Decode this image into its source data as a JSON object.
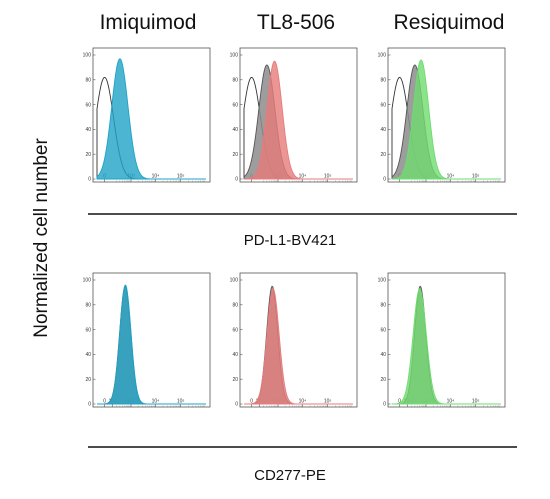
{
  "columns": [
    "Imiquimod",
    "TL8-506",
    "Resiquimod"
  ],
  "y_axis_title": "Normalized cell number",
  "colors": {
    "Imiquimod": "#1fa3c6",
    "TL8-506": "#e77b7b",
    "Resiquimod": "#6fdc6f",
    "reference": "#8c8c8c",
    "isotype": "#333333"
  },
  "chart_data": [
    {
      "type": "area",
      "row": 0,
      "column": 0,
      "marker": "PD-L1-BV421",
      "xscale": "biexponential",
      "xlim": [
        -100,
        1000000
      ],
      "ylim": [
        0,
        100
      ],
      "yticks": [
        "0",
        "20",
        "40",
        "60",
        "80",
        "100"
      ],
      "xticks": [
        "0",
        "10³",
        "10⁴",
        "10⁵"
      ],
      "series": [
        {
          "role": "isotype",
          "peak_x": 0,
          "width_decades": 0.35,
          "peak_y": 82,
          "fill": false
        },
        {
          "role": "stimulated",
          "peak_x": 300,
          "width_decades": 0.32,
          "peak_y": 97,
          "fill": true
        }
      ]
    },
    {
      "type": "area",
      "row": 0,
      "column": 1,
      "marker": "PD-L1-BV421",
      "xscale": "biexponential",
      "xlim": [
        -100,
        1000000
      ],
      "ylim": [
        0,
        100
      ],
      "yticks": [
        "0",
        "20",
        "40",
        "60",
        "80",
        "100"
      ],
      "xticks": [
        "0",
        "10³",
        "10⁴",
        "10⁵"
      ],
      "series": [
        {
          "role": "isotype",
          "peak_x": 0,
          "width_decades": 0.35,
          "peak_y": 82,
          "fill": false
        },
        {
          "role": "reference",
          "peak_x": 300,
          "width_decades": 0.32,
          "peak_y": 92,
          "fill": true
        },
        {
          "role": "stimulated",
          "peak_x": 700,
          "width_decades": 0.3,
          "peak_y": 95,
          "fill": true
        }
      ]
    },
    {
      "type": "area",
      "row": 0,
      "column": 2,
      "marker": "PD-L1-BV421",
      "xscale": "biexponential",
      "xlim": [
        -100,
        1000000
      ],
      "ylim": [
        0,
        100
      ],
      "yticks": [
        "0",
        "20",
        "40",
        "60",
        "80",
        "100"
      ],
      "xticks": [
        "0",
        "10³",
        "10⁴",
        "10⁵"
      ],
      "series": [
        {
          "role": "isotype",
          "peak_x": 0,
          "width_decades": 0.35,
          "peak_y": 82,
          "fill": false
        },
        {
          "role": "reference",
          "peak_x": 300,
          "width_decades": 0.32,
          "peak_y": 92,
          "fill": true
        },
        {
          "role": "stimulated",
          "peak_x": 600,
          "width_decades": 0.3,
          "peak_y": 96,
          "fill": true
        }
      ]
    },
    {
      "type": "area",
      "row": 1,
      "column": 0,
      "marker": "CD277-PE",
      "xscale": "biexponential",
      "xlim": [
        -100,
        1000000
      ],
      "ylim": [
        0,
        100
      ],
      "yticks": [
        "0",
        "20",
        "40",
        "60",
        "80",
        "100"
      ],
      "xticks": [
        "0",
        "10²",
        "10³",
        "10⁴",
        "10⁵"
      ],
      "series": [
        {
          "role": "reference",
          "peak_x": 550,
          "width_decades": 0.22,
          "peak_y": 95,
          "fill": true
        },
        {
          "role": "stimulated",
          "peak_x": 560,
          "width_decades": 0.22,
          "peak_y": 96,
          "fill": true
        }
      ]
    },
    {
      "type": "area",
      "row": 1,
      "column": 1,
      "marker": "CD277-PE",
      "xscale": "biexponential",
      "xlim": [
        -100,
        1000000
      ],
      "ylim": [
        0,
        100
      ],
      "yticks": [
        "0",
        "20",
        "40",
        "60",
        "80",
        "100"
      ],
      "xticks": [
        "0",
        "10²",
        "10³",
        "10⁴",
        "10⁵"
      ],
      "series": [
        {
          "role": "reference",
          "peak_x": 550,
          "width_decades": 0.22,
          "peak_y": 95,
          "fill": true
        },
        {
          "role": "stimulated",
          "peak_x": 600,
          "width_decades": 0.24,
          "peak_y": 93,
          "fill": true
        }
      ]
    },
    {
      "type": "area",
      "row": 1,
      "column": 2,
      "marker": "CD277-PE",
      "xscale": "biexponential",
      "xlim": [
        -100,
        1000000
      ],
      "ylim": [
        0,
        100
      ],
      "yticks": [
        "0",
        "20",
        "40",
        "60",
        "80",
        "100"
      ],
      "xticks": [
        "0",
        "10²",
        "10³",
        "10⁴",
        "10⁵"
      ],
      "series": [
        {
          "role": "reference",
          "peak_x": 550,
          "width_decades": 0.22,
          "peak_y": 95,
          "fill": true
        },
        {
          "role": "stimulated",
          "peak_x": 520,
          "width_decades": 0.26,
          "peak_y": 93,
          "fill": true
        }
      ]
    }
  ],
  "row_markers": [
    "PD-L1-BV421",
    "CD277-PE"
  ]
}
